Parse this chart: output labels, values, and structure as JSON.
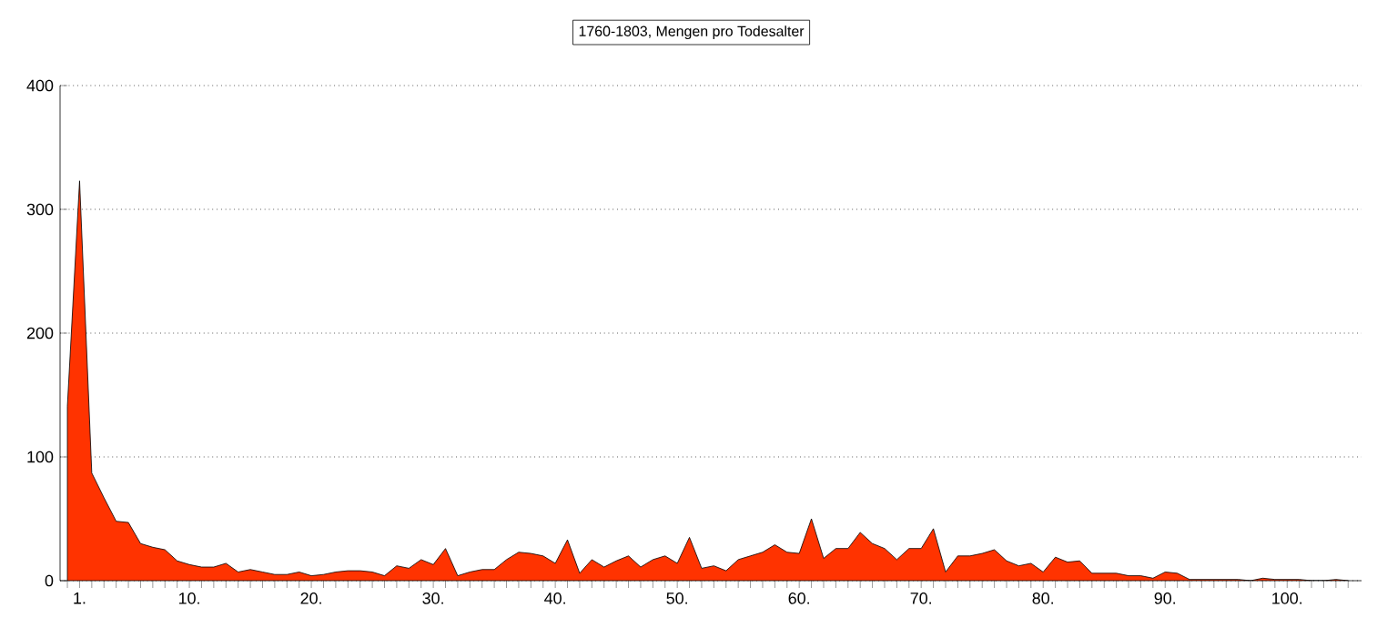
{
  "chart_data": {
    "type": "area",
    "title": "1760-1803, Mengen pro Todesalter",
    "x": [
      0,
      1,
      2,
      3,
      4,
      5,
      6,
      7,
      8,
      9,
      10,
      11,
      12,
      13,
      14,
      15,
      16,
      17,
      18,
      19,
      20,
      21,
      22,
      23,
      24,
      25,
      26,
      27,
      28,
      29,
      30,
      31,
      32,
      33,
      34,
      35,
      36,
      37,
      38,
      39,
      40,
      41,
      42,
      43,
      44,
      45,
      46,
      47,
      48,
      49,
      50,
      51,
      52,
      53,
      54,
      55,
      56,
      57,
      58,
      59,
      60,
      61,
      62,
      63,
      64,
      65,
      66,
      67,
      68,
      69,
      70,
      71,
      72,
      73,
      74,
      75,
      76,
      77,
      78,
      79,
      80,
      81,
      82,
      83,
      84,
      85,
      86,
      87,
      88,
      89,
      90,
      91,
      92,
      93,
      94,
      95,
      96,
      97,
      98,
      99,
      100,
      101,
      102,
      103,
      104,
      105
    ],
    "values": [
      141,
      323,
      87,
      67,
      48,
      47,
      30,
      27,
      25,
      16,
      13,
      11,
      11,
      14,
      7,
      9,
      7,
      5,
      5,
      7,
      4,
      5,
      7,
      8,
      8,
      7,
      4,
      12,
      10,
      17,
      13,
      26,
      4,
      7,
      9,
      9,
      17,
      23,
      22,
      20,
      14,
      33,
      6,
      17,
      11,
      16,
      20,
      11,
      17,
      20,
      14,
      35,
      10,
      12,
      8,
      17,
      20,
      23,
      29,
      23,
      22,
      50,
      18,
      26,
      26,
      39,
      30,
      26,
      17,
      26,
      26,
      42,
      7,
      20,
      20,
      22,
      25,
      16,
      12,
      14,
      7,
      19,
      15,
      16,
      6,
      6,
      6,
      4,
      4,
      2,
      7,
      6,
      1,
      1,
      1,
      1,
      1,
      0,
      2,
      1,
      1,
      1,
      0,
      0,
      1,
      0
    ],
    "color": "#ff3300",
    "marker": "none",
    "grid": "y",
    "xlim": [
      -0.6,
      106.1
    ],
    "ylim": [
      0,
      400
    ],
    "yticks": [
      0,
      100,
      200,
      300,
      400
    ],
    "xticks": [
      {
        "value": 0,
        "label": null
      },
      {
        "value": 1,
        "label": "1."
      },
      {
        "value": 2,
        "label": null
      },
      {
        "value": 3,
        "label": null
      },
      {
        "value": 4,
        "label": null
      },
      {
        "value": 5,
        "label": null
      },
      {
        "value": 6,
        "label": null
      },
      {
        "value": 7,
        "label": null
      },
      {
        "value": 8,
        "label": null
      },
      {
        "value": 9,
        "label": null
      },
      {
        "value": 10,
        "label": "10."
      },
      {
        "value": 11,
        "label": null
      },
      {
        "value": 12,
        "label": null
      },
      {
        "value": 13,
        "label": null
      },
      {
        "value": 14,
        "label": null
      },
      {
        "value": 15,
        "label": null
      },
      {
        "value": 16,
        "label": null
      },
      {
        "value": 17,
        "label": null
      },
      {
        "value": 18,
        "label": null
      },
      {
        "value": 19,
        "label": null
      },
      {
        "value": 20,
        "label": "20."
      },
      {
        "value": 21,
        "label": null
      },
      {
        "value": 22,
        "label": null
      },
      {
        "value": 23,
        "label": null
      },
      {
        "value": 24,
        "label": null
      },
      {
        "value": 25,
        "label": null
      },
      {
        "value": 26,
        "label": null
      },
      {
        "value": 27,
        "label": null
      },
      {
        "value": 28,
        "label": null
      },
      {
        "value": 29,
        "label": null
      },
      {
        "value": 30,
        "label": "30."
      },
      {
        "value": 31,
        "label": null
      },
      {
        "value": 32,
        "label": null
      },
      {
        "value": 33,
        "label": null
      },
      {
        "value": 34,
        "label": null
      },
      {
        "value": 35,
        "label": null
      },
      {
        "value": 36,
        "label": null
      },
      {
        "value": 37,
        "label": null
      },
      {
        "value": 38,
        "label": null
      },
      {
        "value": 39,
        "label": null
      },
      {
        "value": 40,
        "label": "40."
      },
      {
        "value": 41,
        "label": null
      },
      {
        "value": 42,
        "label": null
      },
      {
        "value": 43,
        "label": null
      },
      {
        "value": 44,
        "label": null
      },
      {
        "value": 45,
        "label": null
      },
      {
        "value": 46,
        "label": null
      },
      {
        "value": 47,
        "label": null
      },
      {
        "value": 48,
        "label": null
      },
      {
        "value": 49,
        "label": null
      },
      {
        "value": 50,
        "label": "50."
      },
      {
        "value": 51,
        "label": null
      },
      {
        "value": 52,
        "label": null
      },
      {
        "value": 53,
        "label": null
      },
      {
        "value": 54,
        "label": null
      },
      {
        "value": 55,
        "label": null
      },
      {
        "value": 56,
        "label": null
      },
      {
        "value": 57,
        "label": null
      },
      {
        "value": 58,
        "label": null
      },
      {
        "value": 59,
        "label": null
      },
      {
        "value": 60,
        "label": "60."
      },
      {
        "value": 61,
        "label": null
      },
      {
        "value": 62,
        "label": null
      },
      {
        "value": 63,
        "label": null
      },
      {
        "value": 64,
        "label": null
      },
      {
        "value": 65,
        "label": null
      },
      {
        "value": 66,
        "label": null
      },
      {
        "value": 67,
        "label": null
      },
      {
        "value": 68,
        "label": null
      },
      {
        "value": 69,
        "label": null
      },
      {
        "value": 70,
        "label": "70."
      },
      {
        "value": 71,
        "label": null
      },
      {
        "value": 72,
        "label": null
      },
      {
        "value": 73,
        "label": null
      },
      {
        "value": 74,
        "label": null
      },
      {
        "value": 75,
        "label": null
      },
      {
        "value": 76,
        "label": null
      },
      {
        "value": 77,
        "label": null
      },
      {
        "value": 78,
        "label": null
      },
      {
        "value": 79,
        "label": null
      },
      {
        "value": 80,
        "label": "80."
      },
      {
        "value": 81,
        "label": null
      },
      {
        "value": 82,
        "label": null
      },
      {
        "value": 83,
        "label": null
      },
      {
        "value": 84,
        "label": null
      },
      {
        "value": 85,
        "label": null
      },
      {
        "value": 86,
        "label": null
      },
      {
        "value": 87,
        "label": null
      },
      {
        "value": 88,
        "label": null
      },
      {
        "value": 89,
        "label": null
      },
      {
        "value": 90,
        "label": "90."
      },
      {
        "value": 91,
        "label": null
      },
      {
        "value": 92,
        "label": null
      },
      {
        "value": 93,
        "label": null
      },
      {
        "value": 94,
        "label": null
      },
      {
        "value": 95,
        "label": null
      },
      {
        "value": 96,
        "label": null
      },
      {
        "value": 97,
        "label": null
      },
      {
        "value": 98,
        "label": null
      },
      {
        "value": 99,
        "label": null
      },
      {
        "value": 100,
        "label": "100."
      },
      {
        "value": 101,
        "label": null
      },
      {
        "value": 102,
        "label": null
      },
      {
        "value": 103,
        "label": null
      },
      {
        "value": 104,
        "label": null
      },
      {
        "value": 105,
        "label": null
      }
    ]
  }
}
